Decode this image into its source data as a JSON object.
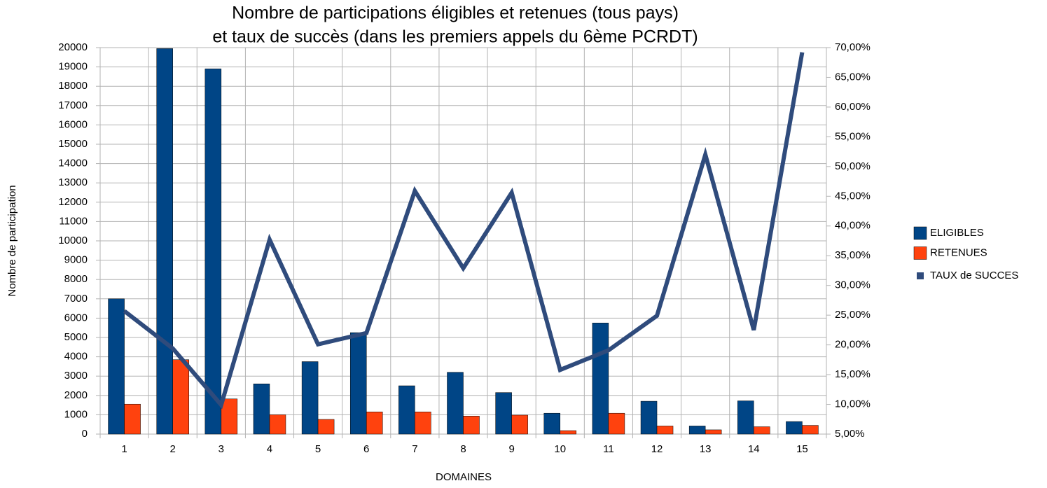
{
  "chart_data": {
    "type": "bar",
    "title": [
      "Nombre de participations éligibles et retenues (tous pays)",
      "et taux de succès (dans les premiers appels du 6ème PCRDT)"
    ],
    "x_label": "DOMAINES",
    "y_label": "Nombre de participation",
    "categories": [
      "1",
      "2",
      "3",
      "4",
      "5",
      "6",
      "7",
      "8",
      "9",
      "10",
      "11",
      "12",
      "13",
      "14",
      "15"
    ],
    "series": [
      {
        "name": "ELIGIBLES",
        "type": "bar",
        "color": "#004586",
        "values": [
          7000,
          19950,
          18900,
          2600,
          3750,
          5250,
          2500,
          3200,
          2150,
          1080,
          5750,
          1700,
          420,
          1720,
          650
        ]
      },
      {
        "name": "RETENUES",
        "type": "bar",
        "color": "#ff420e",
        "values": [
          1550,
          3850,
          1820,
          1000,
          760,
          1150,
          1150,
          930,
          980,
          180,
          1080,
          420,
          220,
          380,
          450
        ]
      },
      {
        "name": "TAUX de SUCCES",
        "type": "line",
        "axis": "y2",
        "color": "#2f4b7c",
        "values": [
          25.7,
          19.4,
          9.9,
          37.7,
          20.1,
          22,
          45.9,
          32.9,
          45.6,
          15.8,
          19.1,
          24.9,
          52,
          22.5,
          69.2
        ]
      }
    ],
    "ylim": [
      0,
      20000
    ],
    "yticks": [
      0,
      1000,
      2000,
      3000,
      4000,
      5000,
      6000,
      7000,
      8000,
      9000,
      10000,
      11000,
      12000,
      13000,
      14000,
      15000,
      16000,
      17000,
      18000,
      19000,
      20000
    ],
    "y2lim": [
      5,
      70
    ],
    "y2ticks": [
      {
        "value": 5,
        "label": "5,00%"
      },
      {
        "value": 10,
        "label": "10,00%"
      },
      {
        "value": 15,
        "label": "15,00%"
      },
      {
        "value": 20,
        "label": "20,00%"
      },
      {
        "value": 25,
        "label": "25,00%"
      },
      {
        "value": 30,
        "label": "30,00%"
      },
      {
        "value": 35,
        "label": "35,00%"
      },
      {
        "value": 40,
        "label": "40,00%"
      },
      {
        "value": 45,
        "label": "45,00%"
      },
      {
        "value": 50,
        "label": "50,00%"
      },
      {
        "value": 55,
        "label": "55,00%"
      },
      {
        "value": 60,
        "label": "60,00%"
      },
      {
        "value": 65,
        "label": "65,00%"
      },
      {
        "value": 70,
        "label": "70,00%"
      }
    ],
    "grid": true,
    "legend": "right"
  }
}
